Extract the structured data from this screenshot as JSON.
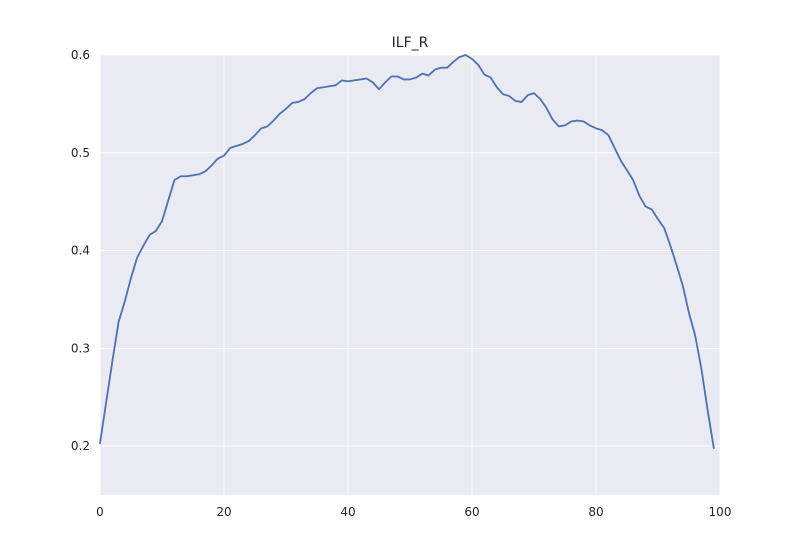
{
  "chart_data": {
    "type": "line",
    "title": "ILF_R",
    "xlabel": "",
    "ylabel": "",
    "xlim": [
      0,
      100
    ],
    "ylim": [
      0.15,
      0.6
    ],
    "xticks": [
      0,
      20,
      40,
      60,
      80,
      100
    ],
    "yticks": [
      0.2,
      0.3,
      0.4,
      0.5,
      0.6
    ],
    "xtick_labels": [
      "0",
      "20",
      "40",
      "60",
      "80",
      "100"
    ],
    "ytick_labels": [
      "0.2",
      "0.3",
      "0.4",
      "0.5",
      "0.6"
    ],
    "grid": true,
    "background": "#eaeaf2",
    "line_color": "#4c72b0",
    "series": [
      {
        "x": [
          0,
          1,
          2,
          3,
          4,
          5,
          6,
          7,
          8,
          9,
          10,
          11,
          12,
          13,
          14,
          15,
          16,
          17,
          18,
          19,
          20,
          21,
          22,
          23,
          24,
          25,
          26,
          27,
          28,
          29,
          30,
          31,
          32,
          33,
          34,
          35,
          36,
          37,
          38,
          39,
          40,
          41,
          42,
          43,
          44,
          45,
          46,
          47,
          48,
          49,
          50,
          51,
          52,
          53,
          54,
          55,
          56,
          57,
          58,
          59,
          60,
          61,
          62,
          63,
          64,
          65,
          66,
          67,
          68,
          69,
          70,
          71,
          72,
          73,
          74,
          75,
          76,
          77,
          78,
          79,
          80,
          81,
          82,
          83,
          84,
          85,
          86,
          87,
          88,
          89,
          90,
          91,
          92,
          93,
          94,
          95,
          96,
          97,
          98,
          99
        ],
        "values": [
          0.203,
          0.245,
          0.287,
          0.327,
          0.348,
          0.372,
          0.393,
          0.405,
          0.416,
          0.42,
          0.43,
          0.451,
          0.472,
          0.476,
          0.476,
          0.477,
          0.478,
          0.481,
          0.487,
          0.494,
          0.497,
          0.505,
          0.507,
          0.509,
          0.512,
          0.518,
          0.525,
          0.527,
          0.533,
          0.54,
          0.545,
          0.551,
          0.552,
          0.555,
          0.561,
          0.566,
          0.567,
          0.568,
          0.569,
          0.574,
          0.573,
          0.574,
          0.575,
          0.576,
          0.572,
          0.565,
          0.572,
          0.578,
          0.578,
          0.575,
          0.575,
          0.577,
          0.581,
          0.579,
          0.585,
          0.587,
          0.587,
          0.593,
          0.598,
          0.6,
          0.596,
          0.59,
          0.58,
          0.577,
          0.567,
          0.56,
          0.558,
          0.553,
          0.552,
          0.559,
          0.561,
          0.555,
          0.546,
          0.534,
          0.527,
          0.528,
          0.532,
          0.533,
          0.532,
          0.528,
          0.525,
          0.523,
          0.518,
          0.505,
          0.492,
          0.482,
          0.472,
          0.456,
          0.445,
          0.442,
          0.432,
          0.423,
          0.405,
          0.385,
          0.364,
          0.336,
          0.313,
          0.279,
          0.237,
          0.198
        ]
      }
    ]
  }
}
